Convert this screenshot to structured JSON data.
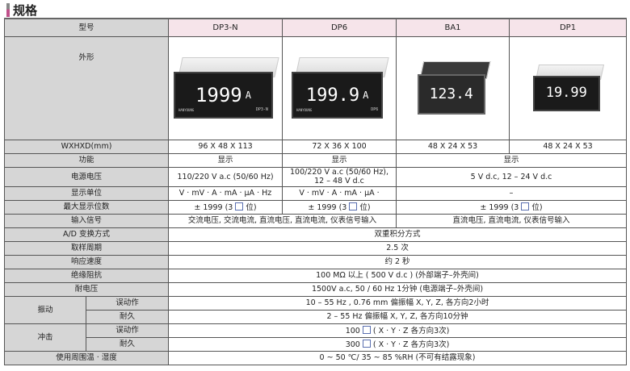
{
  "title": "规格",
  "header": {
    "label": "型号",
    "models": [
      "DP3-N",
      "DP6",
      "BA1",
      "DP1"
    ]
  },
  "images": {
    "label": "外形",
    "meters": [
      {
        "reading": "1999",
        "unit": "A",
        "brand": "HANYOUNG",
        "model": "DP3-N"
      },
      {
        "reading": "199.9",
        "unit": "A",
        "brand": "HANYOUNG",
        "model": "DP6"
      },
      {
        "reading": "123.4",
        "unit": "",
        "brand": "",
        "model": ""
      },
      {
        "reading": "19.99",
        "unit": "",
        "brand": "",
        "model": ""
      }
    ]
  },
  "rows": {
    "size": {
      "label": "WXHXD(mm)",
      "values": [
        "96 X 48 X 113",
        "72 X 36 X 100",
        "48 X 24 X 53",
        "48 X 24 X 53"
      ]
    },
    "function": {
      "label": "功能",
      "values": [
        "显示",
        "显示",
        "显示"
      ]
    },
    "power": {
      "label": "电源电压",
      "values": [
        "110/220 V a.c (50/60 Hz)",
        "100/220 V a.c (50/60 Hz),",
        "12 – 48 V d.c",
        "5 V d.c, 12 – 24 V d.c"
      ]
    },
    "unit": {
      "label": "显示单位",
      "values": [
        "V · mV · A · mA · μA · Hz",
        "V · mV · A · mA · μA ·",
        "–"
      ]
    },
    "digits": {
      "label": "最大显示位数",
      "prefix": "± 1999 (3",
      "suffix": "位)"
    },
    "input": {
      "label": "输入信号",
      "values": [
        "交流电压, 交流电流, 直流电压, 直流电流, 仪表信号输入",
        "直流电压, 直流电流, 仪表信号输入"
      ]
    },
    "ad": {
      "label": "A/D 变换方式",
      "value": "双重积分方式"
    },
    "sampling": {
      "label": "取样周期",
      "value": "2.5 次"
    },
    "response": {
      "label": "响应速度",
      "value": "约 2 秒"
    },
    "insulation": {
      "label": "绝缘阻抗",
      "value": "100 MΩ 以上 ( 500 V d.c ) (外部端子–外壳间)"
    },
    "dielectric": {
      "label": "耐电压",
      "value": "1500V a.c, 50 / 60 Hz 1分钟 (电源端子–外壳间)"
    },
    "vibration": {
      "label": "振动",
      "sub": [
        {
          "label": "误动作",
          "value": "10 – 55 Hz , 0.76 mm 偏振幅 X, Y, Z, 各方向2小时"
        },
        {
          "label": "耐久",
          "value": "2 – 55 Hz 偏振幅 X, Y, Z, 各方向10分钟"
        }
      ]
    },
    "shock": {
      "label": "冲击",
      "suffix": "( X · Y · Z 各方向3次)",
      "sub": [
        {
          "label": "误动作",
          "value": "100"
        },
        {
          "label": "耐久",
          "value": "300"
        }
      ]
    },
    "env": {
      "label": "使用周围温 · 湿度",
      "value": "0 ~ 50 ℃/ 35 ~ 85 %RH (不可有结露现象)"
    }
  }
}
